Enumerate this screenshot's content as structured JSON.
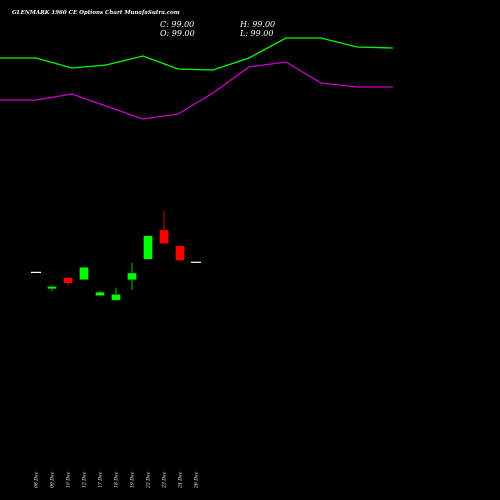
{
  "title": "GLENMARK 1960  CE Options  Chart MunafaSutra.com",
  "ohlc": {
    "close_label": "C: 99.00",
    "high_label": "H: 99.00",
    "open_label": "O: 99.00",
    "low_label": "L: 99.00"
  },
  "colors": {
    "background": "#000000",
    "up": "#00ff00",
    "down": "#ff0000",
    "upper_band": "#00ff00",
    "lower_band": "#cc00cc",
    "neutral": "#ffffff"
  },
  "chart_data": {
    "type": "candlestick",
    "categories": [
      "08 Dec",
      "09 Dec",
      "10 Dec",
      "12 Dec",
      "17 Dec",
      "18 Dec",
      "19 Dec",
      "22 Dec",
      "23 Dec",
      "24 Dec",
      "26 Dec"
    ],
    "ylim": [
      60,
      175
    ],
    "candles": [
      {
        "date": "08 Dec",
        "open": 99.0,
        "high": 99.0,
        "low": 99.0,
        "close": 99.0,
        "dir": "flat"
      },
      {
        "date": "09 Dec",
        "open": 91.5,
        "high": 93.0,
        "low": 90.5,
        "close": 92.5,
        "dir": "up"
      },
      {
        "date": "10 Dec",
        "open": 96.5,
        "high": 96.5,
        "low": 92.5,
        "close": 94.0,
        "dir": "down"
      },
      {
        "date": "12 Dec",
        "open": 95.5,
        "high": 101.0,
        "low": 95.5,
        "close": 101.0,
        "dir": "up"
      },
      {
        "date": "17 Dec",
        "open": 88.5,
        "high": 90.5,
        "low": 88.5,
        "close": 90.0,
        "dir": "up"
      },
      {
        "date": "18 Dec",
        "open": 86.5,
        "high": 92.0,
        "low": 86.5,
        "close": 89.0,
        "dir": "up"
      },
      {
        "date": "19 Dec",
        "open": 95.5,
        "high": 103.0,
        "low": 91.0,
        "close": 98.5,
        "dir": "up"
      },
      {
        "date": "22 Dec",
        "open": 104.5,
        "high": 115.0,
        "low": 104.5,
        "close": 115.0,
        "dir": "up"
      },
      {
        "date": "23 Dec",
        "open": 117.5,
        "high": 126.0,
        "low": 111.5,
        "close": 111.5,
        "dir": "down"
      },
      {
        "date": "24 Dec",
        "open": 110.5,
        "high": 110.5,
        "low": 104.0,
        "close": 104.0,
        "dir": "down"
      },
      {
        "date": "26 Dec",
        "open": 103.5,
        "high": 103.5,
        "low": 103.5,
        "close": 103.5,
        "dir": "flat"
      }
    ],
    "bands": {
      "upper": [
        221,
        221,
        216,
        217.5,
        222,
        215.5,
        215,
        221,
        231,
        231,
        226.5,
        226
      ],
      "lower": [
        200,
        200,
        203,
        197,
        190.5,
        193,
        203.5,
        216.5,
        219,
        208.5,
        206.5,
        206.5
      ]
    },
    "bands_x_start_offset": -1
  }
}
